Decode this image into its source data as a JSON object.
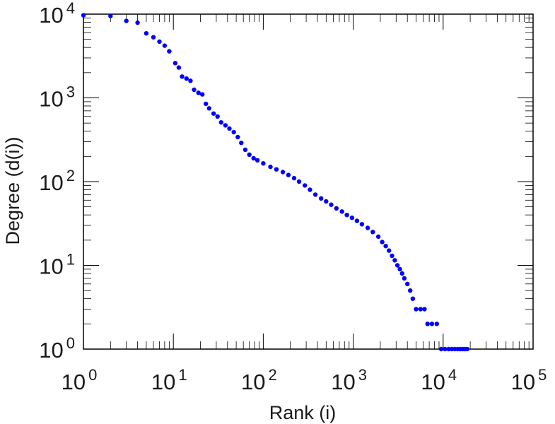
{
  "chart_data": {
    "type": "scatter",
    "xlabel": "Rank (i)",
    "ylabel": "Degree (d(i))",
    "x_scale": "log",
    "y_scale": "log",
    "xlim": [
      1,
      100000
    ],
    "ylim": [
      1,
      10000
    ],
    "x_ticks": [
      {
        "base": "10",
        "exp": "0"
      },
      {
        "base": "10",
        "exp": "1"
      },
      {
        "base": "10",
        "exp": "2"
      },
      {
        "base": "10",
        "exp": "3"
      },
      {
        "base": "10",
        "exp": "4"
      },
      {
        "base": "10",
        "exp": "5"
      }
    ],
    "y_ticks": [
      {
        "base": "10",
        "exp": "0"
      },
      {
        "base": "10",
        "exp": "1"
      },
      {
        "base": "10",
        "exp": "2"
      },
      {
        "base": "10",
        "exp": "3"
      },
      {
        "base": "10",
        "exp": "4"
      }
    ],
    "grid": false,
    "marker_color": "#0000ff",
    "series": [
      {
        "points": [
          [
            1,
            9700
          ],
          [
            2,
            9500
          ],
          [
            3,
            8300
          ],
          [
            4,
            7900
          ],
          [
            5,
            5900
          ],
          [
            6,
            5300
          ],
          [
            7,
            4700
          ],
          [
            8,
            4200
          ],
          [
            9,
            3600
          ],
          [
            10.5,
            2600
          ],
          [
            11.5,
            2300
          ],
          [
            12.5,
            1800
          ],
          [
            14,
            1700
          ],
          [
            15.5,
            1600
          ],
          [
            17,
            1250
          ],
          [
            19,
            1150
          ],
          [
            21,
            1100
          ],
          [
            23,
            850
          ],
          [
            25,
            750
          ],
          [
            28,
            650
          ],
          [
            31,
            600
          ],
          [
            34,
            510
          ],
          [
            38,
            470
          ],
          [
            42,
            430
          ],
          [
            47,
            390
          ],
          [
            52,
            340
          ],
          [
            57,
            290
          ],
          [
            63,
            240
          ],
          [
            70,
            210
          ],
          [
            78,
            190
          ],
          [
            86,
            180
          ],
          [
            100,
            165
          ],
          [
            120,
            150
          ],
          [
            140,
            140
          ],
          [
            165,
            130
          ],
          [
            190,
            120
          ],
          [
            220,
            110
          ],
          [
            250,
            100
          ],
          [
            290,
            90
          ],
          [
            330,
            80
          ],
          [
            380,
            70
          ],
          [
            440,
            63
          ],
          [
            500,
            58
          ],
          [
            570,
            53
          ],
          [
            650,
            48
          ],
          [
            750,
            44
          ],
          [
            850,
            40
          ],
          [
            970,
            37
          ],
          [
            1100,
            34
          ],
          [
            1250,
            31
          ],
          [
            1450,
            28
          ],
          [
            1650,
            25
          ],
          [
            1900,
            22
          ],
          [
            2100,
            19
          ],
          [
            2300,
            17
          ],
          [
            2500,
            15
          ],
          [
            2700,
            13
          ],
          [
            2900,
            11.5
          ],
          [
            3100,
            10
          ],
          [
            3300,
            9
          ],
          [
            3500,
            8
          ],
          [
            3700,
            7
          ],
          [
            4000,
            6
          ],
          [
            4300,
            5
          ],
          [
            4600,
            4
          ],
          [
            5000,
            3
          ],
          [
            5600,
            3
          ],
          [
            6200,
            3
          ],
          [
            6700,
            2
          ],
          [
            7500,
            2
          ],
          [
            8500,
            2
          ],
          [
            9500,
            1
          ],
          [
            10500,
            1
          ],
          [
            11500,
            1
          ],
          [
            12500,
            1
          ],
          [
            13500,
            1
          ],
          [
            14500,
            1
          ],
          [
            15500,
            1
          ],
          [
            16500,
            1
          ],
          [
            17500,
            1
          ],
          [
            18500,
            1
          ]
        ]
      }
    ]
  }
}
